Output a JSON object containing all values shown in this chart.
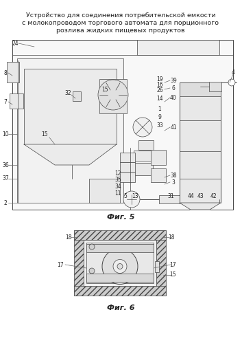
{
  "title_line1": "Устройство для соединения потребительской емкости",
  "title_line2": "с молокопроводом торгового автомата для порционного",
  "title_line3": "розлива жидких пищевых продуктов",
  "fig5_label": "Фиг. 5",
  "fig6_label": "Фиг. 6",
  "bg_color": "#ffffff",
  "lc": "#444444",
  "lc_light": "#888888"
}
